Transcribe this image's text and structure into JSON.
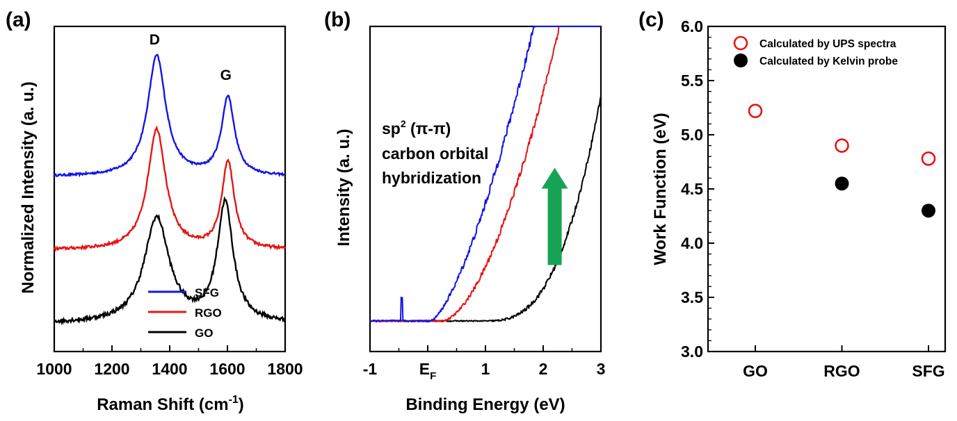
{
  "chart_data": [
    {
      "panel": "(a)",
      "type": "line",
      "xlabel": "Raman Shift (cm",
      "xlabel_sup": "-1",
      "xlabel_end": ")",
      "ylabel": "Normalized Intensity (a. u.)",
      "xlim": [
        1000,
        1800
      ],
      "xticks": [
        "1000",
        "1200",
        "1400",
        "1600",
        "1800"
      ],
      "peak_labels": [
        {
          "text": "D",
          "x": 1355
        },
        {
          "text": "G",
          "x": 1602
        }
      ],
      "legend": [
        "SFG",
        "RGO",
        "GO"
      ],
      "series": [
        {
          "name": "SFG",
          "color": "#1414e6",
          "offset": 0.42,
          "noise": 0.003,
          "baseline": 0.0,
          "peaks": [
            {
              "x": 1355,
              "h": 0.345,
              "w": 38
            },
            {
              "x": 1602,
              "h": 0.225,
              "w": 27
            }
          ]
        },
        {
          "name": "RGO",
          "color": "#e61414",
          "offset": 0.21,
          "noise": 0.004,
          "baseline": 0.0,
          "peaks": [
            {
              "x": 1355,
              "h": 0.345,
              "w": 38
            },
            {
              "x": 1602,
              "h": 0.25,
              "w": 26
            }
          ]
        },
        {
          "name": "GO",
          "color": "#000000",
          "offset": 0.0,
          "noise": 0.006,
          "baseline": 0.0,
          "peaks": [
            {
              "x": 1355,
              "h": 0.3,
              "w": 52
            },
            {
              "x": 1592,
              "h": 0.34,
              "w": 33
            }
          ]
        }
      ],
      "ylim": [
        -0.08,
        0.85
      ]
    },
    {
      "panel": "(b)",
      "type": "line",
      "xlabel": "Binding Energy (eV)",
      "ylabel": "Intensity (a. u.)",
      "xlim": [
        -1,
        3
      ],
      "ylim": [
        0,
        1
      ],
      "xticks": [
        "-1",
        "E",
        "1",
        "2",
        "3"
      ],
      "xtick_sub": "F",
      "annotation": [
        "sp",
        "2",
        " (π-π)",
        "carbon orbital",
        "hybridization"
      ],
      "arrow_color": "#17a356",
      "arrow": {
        "x": 2.2,
        "y_from": 0.19,
        "y_to": 0.52
      },
      "series": [
        {
          "name": "SFG",
          "color": "#1414e6",
          "onset": 0.05,
          "k": 0.43,
          "p": 1.45,
          "noise": 0.02,
          "spike": -0.45
        },
        {
          "name": "RGO",
          "color": "#e61414",
          "onset": 0.25,
          "k": 0.3,
          "p": 1.7,
          "noise": 0.016
        },
        {
          "name": "GO",
          "color": "#000000",
          "onset": 1.0,
          "k": 0.11,
          "p": 2.8,
          "noise": 0.012
        }
      ]
    },
    {
      "panel": "(c)",
      "type": "scatter",
      "ylabel": "Work Function (eV)",
      "categories": [
        "GO",
        "RGO",
        "SFG"
      ],
      "ylim": [
        3.0,
        6.0
      ],
      "yticks": [
        "3.0",
        "3.5",
        "4.0",
        "4.5",
        "5.0",
        "5.5",
        "6.0"
      ],
      "series": [
        {
          "name": "Calculated by UPS spectra",
          "marker": "open-circle",
          "color": "#e61414",
          "values": [
            5.22,
            4.9,
            4.78
          ]
        },
        {
          "name": "Calculated by Kelvin probe",
          "marker": "filled-circle",
          "color": "#000000",
          "values": [
            null,
            4.55,
            4.3
          ]
        }
      ]
    }
  ]
}
